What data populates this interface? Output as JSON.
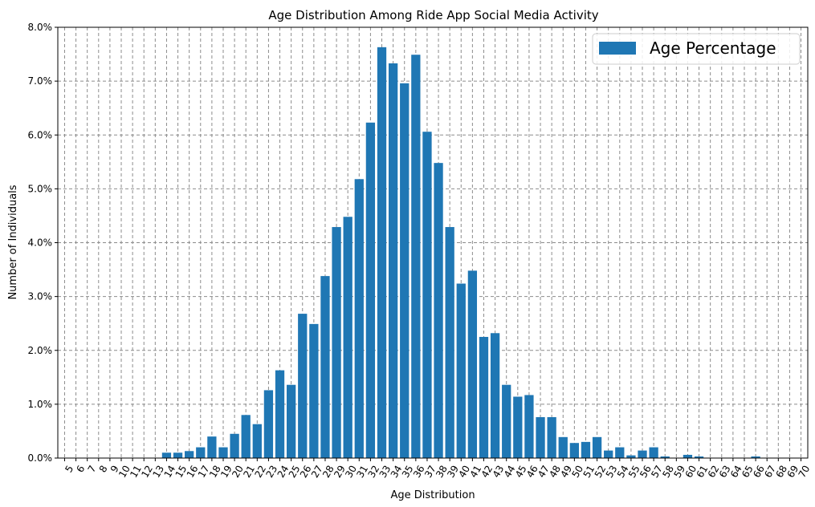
{
  "chart_data": {
    "type": "bar",
    "title": "Age Distribution Among Ride App Social Media Activity",
    "xlabel": "Age Distribution",
    "ylabel": "Number of Individuals",
    "legend": {
      "label": "Age Percentage",
      "placement": "top-right"
    },
    "bar_color": "#1f77b4",
    "grid": true,
    "ylim": [
      0,
      8.0
    ],
    "y_ticks": [
      "0.0%",
      "1.0%",
      "2.0%",
      "3.0%",
      "4.0%",
      "5.0%",
      "6.0%",
      "7.0%",
      "8.0%"
    ],
    "categories": [
      "5",
      "6",
      "7",
      "8",
      "9",
      "10",
      "11",
      "12",
      "13",
      "14",
      "15",
      "16",
      "17",
      "18",
      "19",
      "20",
      "21",
      "22",
      "23",
      "24",
      "25",
      "26",
      "27",
      "28",
      "29",
      "30",
      "31",
      "32",
      "33",
      "34",
      "35",
      "36",
      "37",
      "38",
      "39",
      "40",
      "41",
      "42",
      "43",
      "44",
      "45",
      "46",
      "47",
      "48",
      "49",
      "50",
      "51",
      "52",
      "53",
      "54",
      "55",
      "56",
      "57",
      "58",
      "59",
      "60",
      "61",
      "62",
      "63",
      "64",
      "65",
      "66",
      "67",
      "68",
      "69",
      "70"
    ],
    "values": [
      0,
      0,
      0,
      0,
      0,
      0,
      0,
      0,
      0,
      0.1,
      0.1,
      0.13,
      0.2,
      0.4,
      0.2,
      0.45,
      0.8,
      0.63,
      1.26,
      1.63,
      1.36,
      2.68,
      2.49,
      3.38,
      4.29,
      4.48,
      5.18,
      6.23,
      7.63,
      7.33,
      6.96,
      7.49,
      6.06,
      5.48,
      4.29,
      3.24,
      3.48,
      2.25,
      2.32,
      1.36,
      1.14,
      1.17,
      0.76,
      0.76,
      0.39,
      0.28,
      0.3,
      0.39,
      0.14,
      0.2,
      0.05,
      0.14,
      0.2,
      0.03,
      0,
      0.06,
      0.03,
      0,
      0,
      0,
      0,
      0.03,
      0,
      0,
      0,
      0
    ]
  }
}
